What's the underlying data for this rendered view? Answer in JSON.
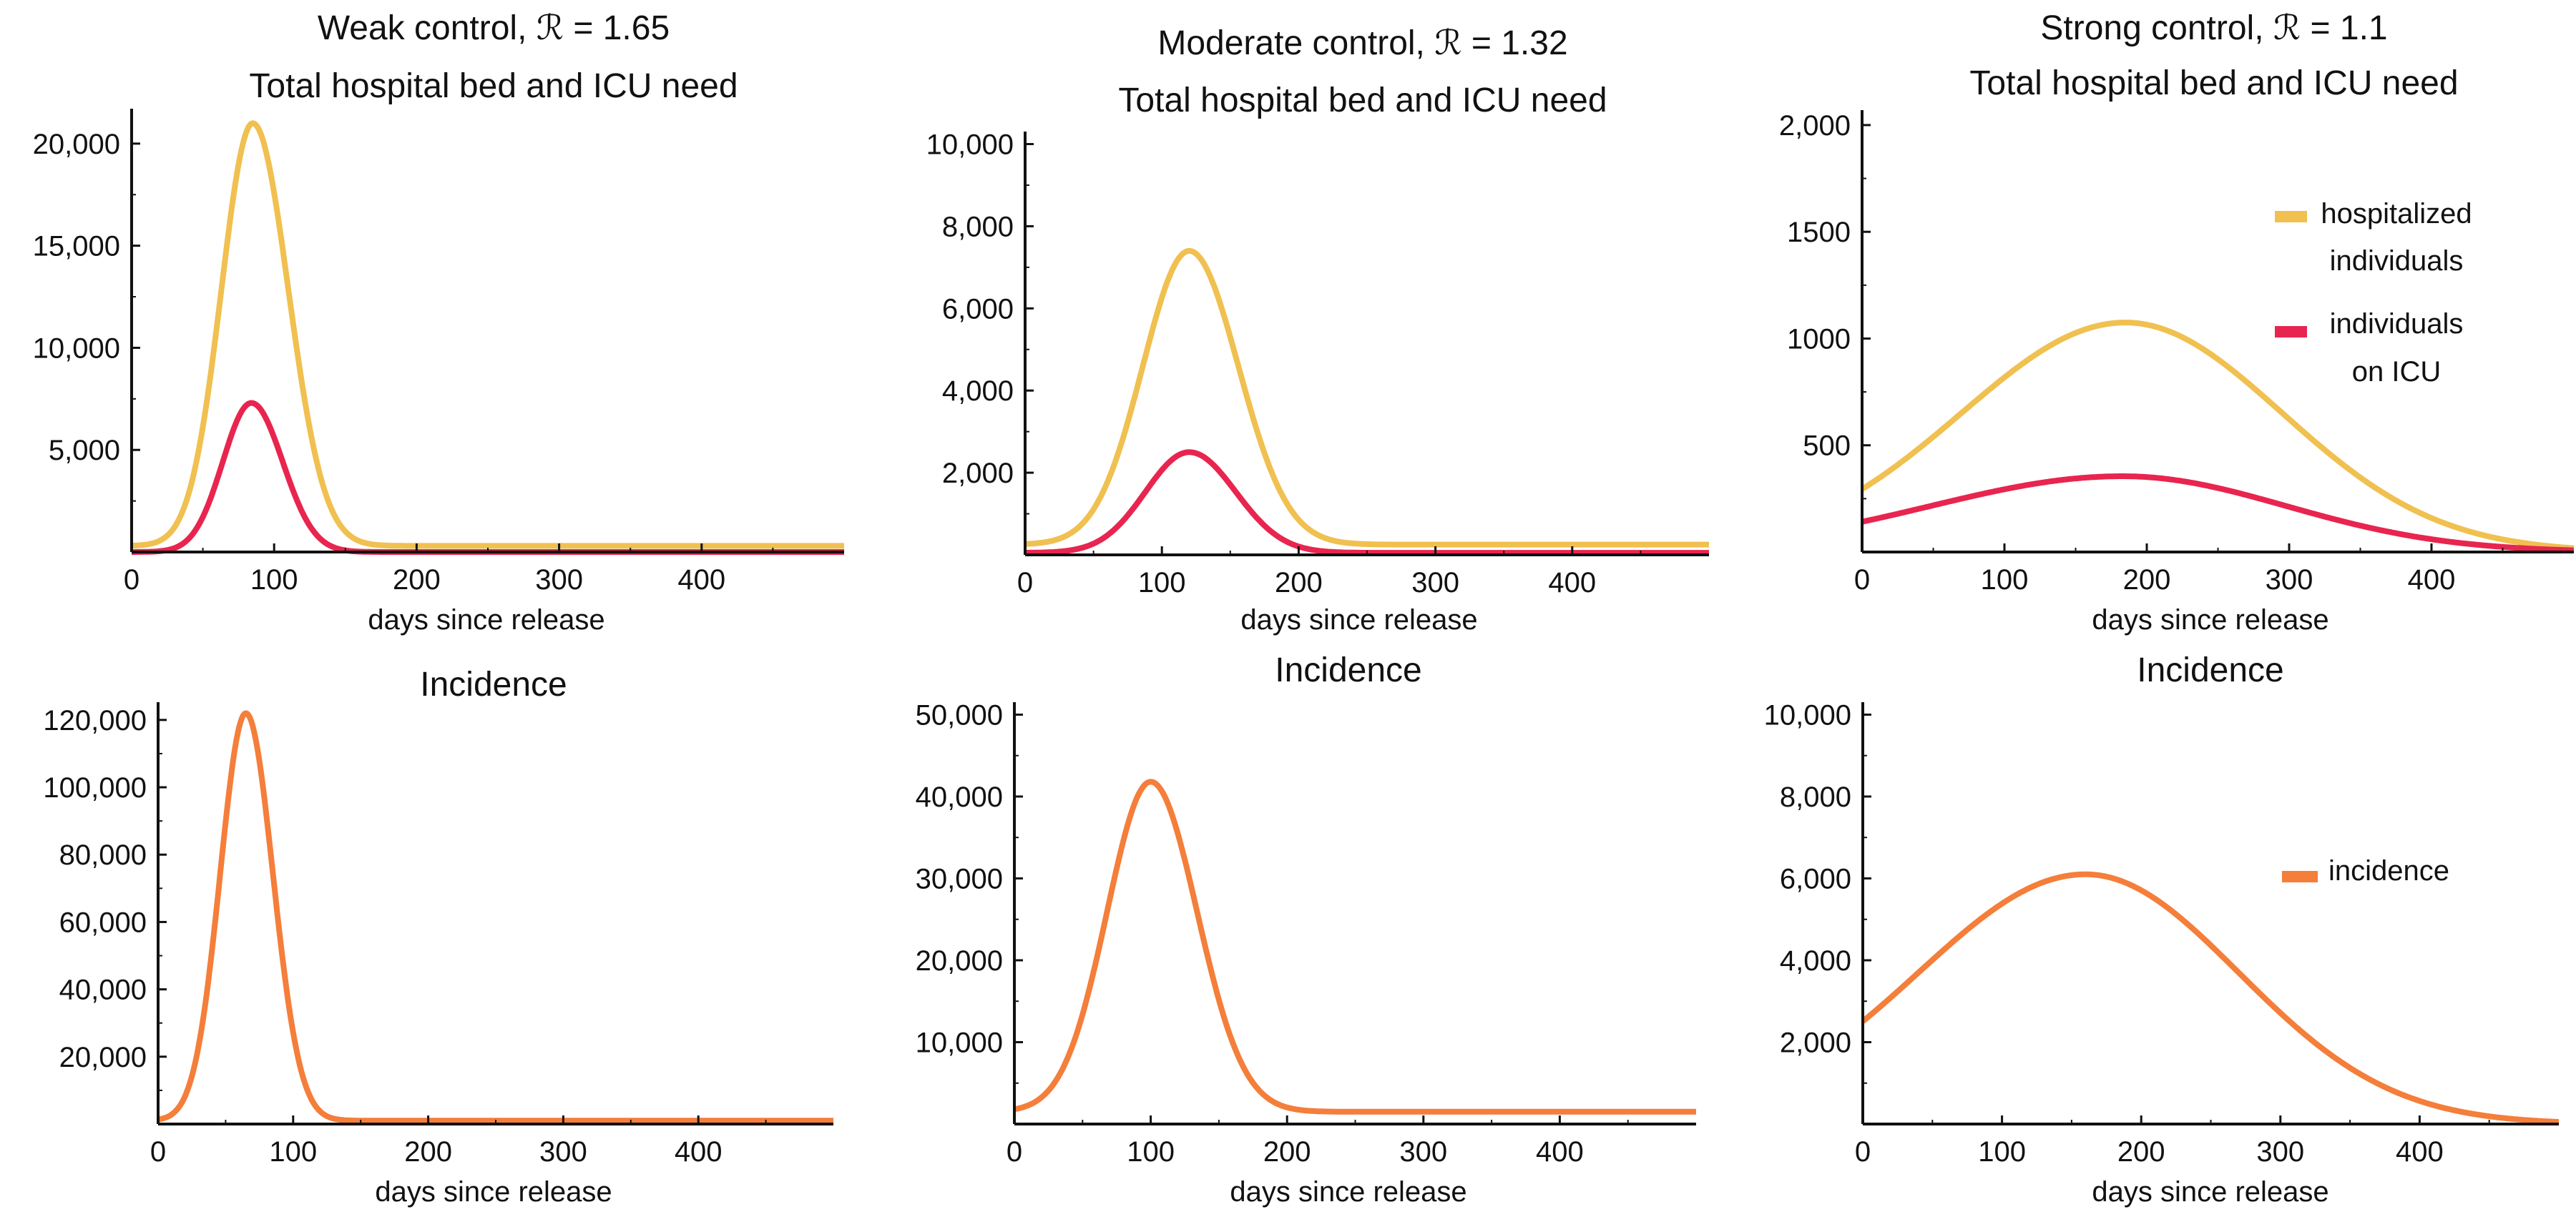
{
  "colors": {
    "hospitalized": "#f0c050",
    "icu": "#e8254f",
    "incidence": "#f47e3a",
    "axis": "#111111",
    "text": "#111111"
  },
  "legend_top": {
    "hospitalized_line1": "hospitalized",
    "hospitalized_line2": "individuals",
    "icu_line1": "individuals",
    "icu_line2": "on ICU"
  },
  "legend_bottom": {
    "incidence": "incidence"
  },
  "chart_data": [
    {
      "id": "weak_beds",
      "type": "line",
      "title_line1": "Weak control, ℛ = 1.65",
      "title_line2": "Total hospital bed and ICU need",
      "xlabel": "days since release",
      "ylabel": "",
      "xlim": [
        0,
        500
      ],
      "ylim": [
        0,
        21500
      ],
      "x_ticks": [
        0,
        100,
        200,
        300,
        400
      ],
      "x_tick_labels": [
        "0",
        "100",
        "200",
        "300",
        "400"
      ],
      "y_ticks": [
        5000,
        10000,
        15000,
        20000
      ],
      "y_tick_labels": [
        "5,000",
        "10,000",
        "15,000",
        "20,000"
      ],
      "series": [
        {
          "name": "hospitalized individuals",
          "color_key": "hospitalized",
          "peak": 21000,
          "peak_day": 85,
          "sigma_left": 22,
          "sigma_right": 25,
          "baseline": 300
        },
        {
          "name": "individuals on ICU",
          "color_key": "icu",
          "peak": 7300,
          "peak_day": 84,
          "sigma_left": 20,
          "sigma_right": 22,
          "baseline": 0
        }
      ]
    },
    {
      "id": "moderate_beds",
      "type": "line",
      "title_line1": "Moderate control, ℛ = 1.32",
      "title_line2": "Total hospital bed and ICU need",
      "xlabel": "days since release",
      "ylabel": "",
      "xlim": [
        0,
        500
      ],
      "ylim": [
        0,
        10200
      ],
      "x_ticks": [
        0,
        100,
        200,
        300,
        400
      ],
      "x_tick_labels": [
        "0",
        "100",
        "200",
        "300",
        "400"
      ],
      "y_ticks": [
        2000,
        4000,
        6000,
        8000,
        10000
      ],
      "y_tick_labels": [
        "2,000",
        "4,000",
        "6,000",
        "8,000",
        "10,000"
      ],
      "series": [
        {
          "name": "hospitalized individuals",
          "color_key": "hospitalized",
          "peak": 7400,
          "peak_day": 120,
          "sigma_left": 34,
          "sigma_right": 36,
          "baseline": 250
        },
        {
          "name": "individuals on ICU",
          "color_key": "icu",
          "peak": 2500,
          "peak_day": 120,
          "sigma_left": 32,
          "sigma_right": 34,
          "baseline": 50
        }
      ]
    },
    {
      "id": "strong_beds",
      "type": "line",
      "title_line1": "Strong control, ℛ = 1.1",
      "title_line2": "Total hospital bed and ICU need",
      "xlabel": "days since release",
      "ylabel": "",
      "xlim": [
        0,
        500
      ],
      "ylim": [
        0,
        2050
      ],
      "x_ticks": [
        0,
        100,
        200,
        300,
        400
      ],
      "x_tick_labels": [
        "0",
        "100",
        "200",
        "300",
        "400"
      ],
      "y_ticks": [
        500,
        1000,
        1500,
        2000
      ],
      "y_tick_labels": [
        "500",
        "1000",
        "1500",
        "2,000"
      ],
      "legend": "right",
      "series": [
        {
          "name": "hospitalized individuals",
          "color_key": "hospitalized",
          "peak": 1075,
          "peak_day": 185,
          "sigma_left": 115,
          "sigma_right": 110,
          "baseline": 0
        },
        {
          "name": "individuals on ICU",
          "color_key": "icu",
          "peak": 355,
          "peak_day": 183,
          "sigma_left": 135,
          "sigma_right": 115,
          "baseline": 0
        }
      ]
    },
    {
      "id": "weak_incidence",
      "type": "line",
      "title_line1": "Incidence",
      "xlabel": "days since release",
      "ylabel": "",
      "xlim": [
        0,
        500
      ],
      "ylim": [
        0,
        124000
      ],
      "x_ticks": [
        0,
        100,
        200,
        300,
        400
      ],
      "x_tick_labels": [
        "0",
        "100",
        "200",
        "300",
        "400"
      ],
      "y_ticks": [
        20000,
        40000,
        60000,
        80000,
        100000,
        120000
      ],
      "y_tick_labels": [
        "20,000",
        "40,000",
        "60,000",
        "80,000",
        "100,000",
        "120,000"
      ],
      "series": [
        {
          "name": "incidence",
          "color_key": "incidence",
          "peak": 122000,
          "peak_day": 65,
          "sigma_left": 19,
          "sigma_right": 20,
          "baseline": 1000
        }
      ]
    },
    {
      "id": "moderate_incidence",
      "type": "line",
      "title_line1": "Incidence",
      "xlabel": "days since release",
      "ylabel": "",
      "xlim": [
        0,
        500
      ],
      "ylim": [
        0,
        51000
      ],
      "x_ticks": [
        0,
        100,
        200,
        300,
        400
      ],
      "x_tick_labels": [
        "0",
        "100",
        "200",
        "300",
        "400"
      ],
      "y_ticks": [
        10000,
        20000,
        30000,
        40000,
        50000
      ],
      "y_tick_labels": [
        "10,000",
        "20,000",
        "30,000",
        "40,000",
        "50,000"
      ],
      "series": [
        {
          "name": "incidence",
          "color_key": "incidence",
          "peak": 41800,
          "peak_day": 100,
          "sigma_left": 32,
          "sigma_right": 34,
          "baseline": 1500
        }
      ]
    },
    {
      "id": "strong_incidence",
      "type": "line",
      "title_line1": "Incidence",
      "xlabel": "days since release",
      "ylabel": "",
      "xlim": [
        0,
        500
      ],
      "ylim": [
        0,
        10200
      ],
      "x_ticks": [
        0,
        100,
        200,
        300,
        400
      ],
      "x_tick_labels": [
        "0",
        "100",
        "200",
        "300",
        "400"
      ],
      "y_ticks": [
        2000,
        4000,
        6000,
        8000,
        10000
      ],
      "y_tick_labels": [
        "2,000",
        "4,000",
        "6,000",
        "8,000",
        "10,000"
      ],
      "legend": "right",
      "series": [
        {
          "name": "incidence",
          "color_key": "incidence",
          "peak": 6100,
          "peak_day": 160,
          "sigma_left": 120,
          "sigma_right": 110,
          "baseline": 0
        }
      ]
    }
  ]
}
